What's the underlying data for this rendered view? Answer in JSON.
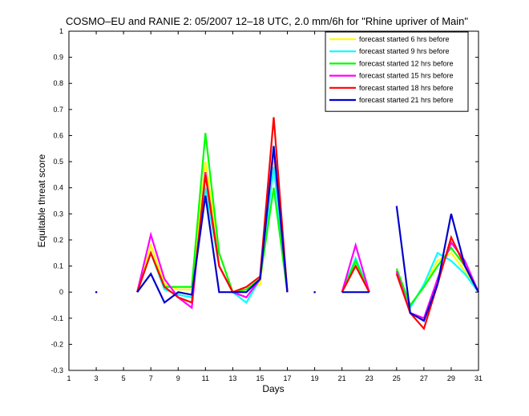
{
  "chart_data": {
    "type": "line",
    "title": "COSMO–EU and RANIE 2: 05/2007 12–18 UTC, 2.0 mm/6h for \"Rhine upriver of Main\"",
    "xlabel": "Days",
    "ylabel": "Equitable threat score",
    "xlim": [
      1,
      31
    ],
    "ylim": [
      -0.3,
      1
    ],
    "xticks": [
      1,
      3,
      5,
      7,
      9,
      11,
      13,
      15,
      17,
      19,
      21,
      23,
      25,
      27,
      29,
      31
    ],
    "yticks": [
      -0.3,
      -0.2,
      -0.1,
      0,
      0.1,
      0.2,
      0.3,
      0.4,
      0.5,
      0.6,
      0.7,
      0.8,
      0.9,
      1
    ],
    "ytick_labels": [
      "-0.3",
      "-0.2",
      "-0.1",
      "0",
      "0.1",
      "0.2",
      "0.3",
      "0.4",
      "0.5",
      "0.6",
      "0.7",
      "0.8",
      "0.9",
      "1"
    ],
    "legend_position": "top-right",
    "grid": false,
    "x": [
      1,
      2,
      3,
      4,
      5,
      6,
      7,
      8,
      9,
      10,
      11,
      12,
      13,
      14,
      15,
      16,
      17,
      18,
      19,
      20,
      21,
      22,
      23,
      24,
      25,
      26,
      27,
      28,
      29,
      30,
      31
    ],
    "series": [
      {
        "name": "forecast started 6 hrs before",
        "color": "#ffff00",
        "values": [
          null,
          null,
          0,
          null,
          null,
          0,
          0.18,
          0.03,
          0.01,
          0.01,
          0.5,
          0.15,
          0,
          0.01,
          0.03,
          0.5,
          0,
          null,
          0,
          null,
          0,
          0.12,
          0,
          null,
          0.09,
          -0.05,
          0.02,
          0.12,
          0.15,
          0.08,
          0
        ]
      },
      {
        "name": "forecast started 9 hrs before",
        "color": "#00ffff",
        "values": [
          null,
          null,
          0,
          null,
          null,
          0,
          0.15,
          0.01,
          -0.01,
          -0.02,
          0.4,
          0.1,
          0,
          -0.04,
          0.05,
          0.48,
          0,
          null,
          0,
          null,
          0,
          0.13,
          0,
          null,
          0.08,
          -0.06,
          0.03,
          0.15,
          0.12,
          0.07,
          0
        ]
      },
      {
        "name": "forecast started 12 hrs before",
        "color": "#00ff00",
        "values": [
          null,
          null,
          0,
          null,
          null,
          0,
          0.15,
          0.02,
          0.02,
          0.02,
          0.61,
          0.15,
          0,
          0.01,
          0.05,
          0.4,
          0,
          null,
          0,
          null,
          0,
          0.12,
          0,
          null,
          0.09,
          -0.05,
          0.02,
          0.1,
          0.17,
          0.1,
          0
        ]
      },
      {
        "name": "forecast started 15 hrs before",
        "color": "#ff00ff",
        "values": [
          null,
          null,
          0,
          null,
          null,
          0,
          0.22,
          0.05,
          -0.02,
          -0.06,
          0.46,
          0.1,
          0,
          -0.02,
          0.05,
          0.55,
          0,
          null,
          0,
          null,
          0,
          0.18,
          0,
          null,
          0.08,
          -0.08,
          -0.1,
          0.05,
          0.19,
          0.12,
          0
        ]
      },
      {
        "name": "forecast started 18 hrs before",
        "color": "#ff0000",
        "values": [
          null,
          null,
          0,
          null,
          null,
          0,
          0.15,
          0.02,
          -0.02,
          -0.04,
          0.45,
          0.1,
          0,
          0.02,
          0.06,
          0.67,
          0,
          null,
          0,
          null,
          0,
          0.1,
          0,
          null,
          0.07,
          -0.08,
          -0.14,
          0.03,
          0.21,
          0.1,
          0
        ]
      },
      {
        "name": "forecast started 21 hrs before",
        "color": "#0000cc",
        "values": [
          null,
          null,
          0,
          null,
          null,
          0,
          0.07,
          -0.04,
          0,
          -0.01,
          0.37,
          0,
          0,
          0,
          0.05,
          0.56,
          0,
          null,
          0,
          null,
          0,
          0,
          0,
          null,
          0.33,
          -0.08,
          -0.11,
          0.03,
          0.3,
          0.1,
          0
        ]
      }
    ]
  }
}
